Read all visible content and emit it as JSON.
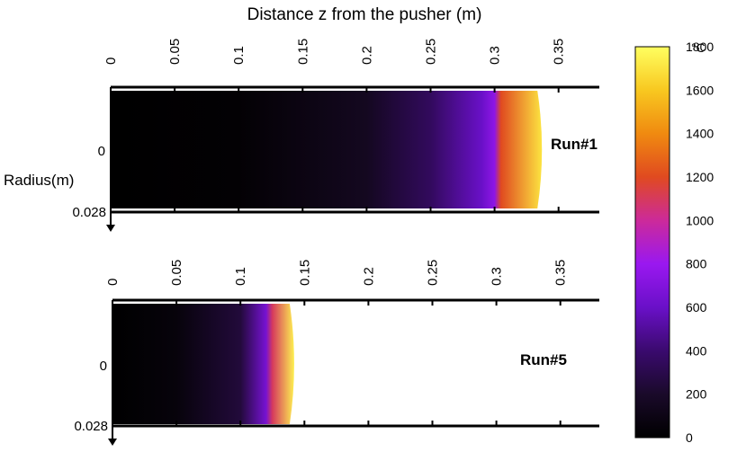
{
  "chart_data": {
    "type": "heatmap",
    "title": "Distance z from the pusher (m)",
    "ylabel": "Radius(m)",
    "x_ticks": [
      "0",
      "0.05",
      "0.1",
      "0.15",
      "0.2",
      "0.25",
      "0.3",
      "0.35"
    ],
    "x_range_m": [
      0,
      0.375
    ],
    "y_ticks": [
      "0",
      "0.028"
    ],
    "panels": [
      {
        "name": "Run#1",
        "z_end_m": 0.337,
        "hot_zone_start_m": 0.304,
        "temperature_profile": {
          "z_m": [
            0,
            0.1,
            0.2,
            0.25,
            0.29,
            0.3,
            0.305,
            0.337
          ],
          "T_C": [
            0,
            20,
            150,
            350,
            600,
            750,
            1200,
            1700
          ]
        }
      },
      {
        "name": "Run#5",
        "z_end_m": 0.142,
        "hot_zone_start_m": 0.126,
        "temperature_profile": {
          "z_m": [
            0,
            0.05,
            0.1,
            0.12,
            0.125,
            0.142
          ],
          "T_C": [
            0,
            50,
            250,
            650,
            1100,
            1750
          ]
        }
      }
    ],
    "colorbar": {
      "unit": "°C",
      "range": [
        0,
        1800
      ],
      "ticks": [
        "1800",
        "1600",
        "1400",
        "1200",
        "1000",
        "800",
        "600",
        "400",
        "200",
        "0"
      ],
      "colormap": [
        "#000000",
        "#1a0a2a",
        "#3a0a6e",
        "#6a10c8",
        "#9a18f0",
        "#cc2a9a",
        "#e04a20",
        "#f08a10",
        "#f8c820",
        "#ffff60"
      ]
    }
  }
}
